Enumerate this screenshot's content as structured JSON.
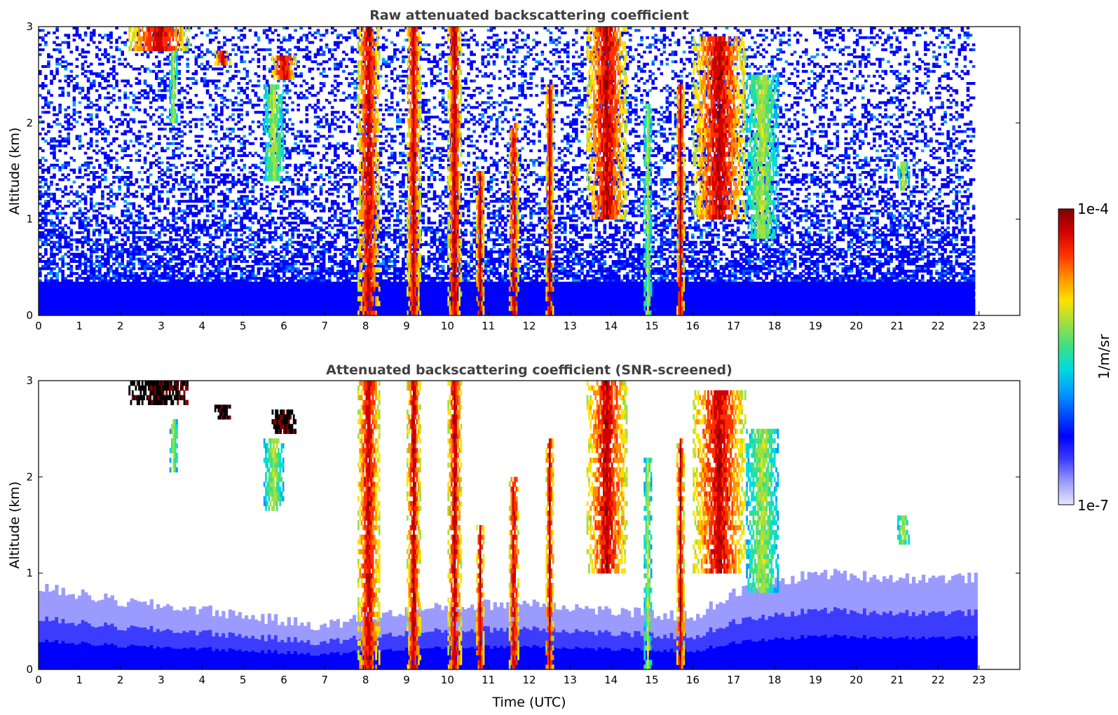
{
  "chart_data": [
    {
      "type": "heatmap",
      "title": "Raw attenuated backscattering coefficient",
      "xlabel": "",
      "ylabel": "Altitude (km)",
      "xlim": [
        0,
        24
      ],
      "ylim": [
        0,
        3
      ],
      "x_ticks": [
        "0",
        "1",
        "2",
        "3",
        "4",
        "5",
        "6",
        "7",
        "8",
        "9",
        "10",
        "11",
        "12",
        "13",
        "14",
        "15",
        "16",
        "17",
        "18",
        "19",
        "20",
        "21",
        "22",
        "23"
      ],
      "y_ticks": [
        "0",
        "1",
        "2",
        "3"
      ],
      "data_time_range": [
        0,
        22.9
      ],
      "background": "noise-speckled blue field, dense below 0.5 km",
      "features": [
        {
          "name": "elevated layer",
          "t": [
            2.2,
            3.7
          ],
          "z": [
            2.75,
            3.0
          ],
          "level": "high"
        },
        {
          "name": "elevated layer",
          "t": [
            4.3,
            4.7
          ],
          "z": [
            2.6,
            2.75
          ],
          "level": "high"
        },
        {
          "name": "elevated layer",
          "t": [
            5.7,
            6.3
          ],
          "z": [
            2.45,
            2.7
          ],
          "level": "high"
        },
        {
          "name": "fall streak",
          "t": [
            3.2,
            3.4
          ],
          "z": [
            2.0,
            2.75
          ],
          "level": "mid"
        },
        {
          "name": "fall streak",
          "t": [
            5.5,
            6.0
          ],
          "z": [
            1.4,
            2.4
          ],
          "level": "mid"
        },
        {
          "name": "cloud",
          "t": [
            7.8,
            8.35
          ],
          "z": [
            0.0,
            3.0
          ],
          "level": "high"
        },
        {
          "name": "cloud",
          "t": [
            9.0,
            9.35
          ],
          "z": [
            0.0,
            3.0
          ],
          "level": "high"
        },
        {
          "name": "cloud",
          "t": [
            10.0,
            10.35
          ],
          "z": [
            0.0,
            3.0
          ],
          "level": "high"
        },
        {
          "name": "cloud",
          "t": [
            10.7,
            10.9
          ],
          "z": [
            0.0,
            1.5
          ],
          "level": "high"
        },
        {
          "name": "cloud",
          "t": [
            11.5,
            11.75
          ],
          "z": [
            0.0,
            2.0
          ],
          "level": "high"
        },
        {
          "name": "cloud",
          "t": [
            12.4,
            12.6
          ],
          "z": [
            0.0,
            2.4
          ],
          "level": "high"
        },
        {
          "name": "cloud",
          "t": [
            13.4,
            14.4
          ],
          "z": [
            1.0,
            3.0
          ],
          "level": "high"
        },
        {
          "name": "cloud",
          "t": [
            14.8,
            15.0
          ],
          "z": [
            0.0,
            2.2
          ],
          "level": "mid"
        },
        {
          "name": "cloud",
          "t": [
            15.6,
            15.8
          ],
          "z": [
            0.0,
            2.4
          ],
          "level": "high"
        },
        {
          "name": "cloud",
          "t": [
            16.0,
            17.3
          ],
          "z": [
            1.0,
            2.9
          ],
          "level": "high"
        },
        {
          "name": "cloud",
          "t": [
            17.3,
            18.1
          ],
          "z": [
            0.8,
            2.5
          ],
          "level": "mid"
        },
        {
          "name": "small cloud",
          "t": [
            21.0,
            21.3
          ],
          "z": [
            1.3,
            1.6
          ],
          "level": "mid"
        }
      ]
    },
    {
      "type": "heatmap",
      "title": "Attenuated backscattering coefficient (SNR-screened)",
      "xlabel": "Time (UTC)",
      "ylabel": "Altitude (km)",
      "xlim": [
        0,
        24
      ],
      "ylim": [
        0,
        3
      ],
      "x_ticks": [
        "0",
        "1",
        "2",
        "3",
        "4",
        "5",
        "6",
        "7",
        "8",
        "9",
        "10",
        "11",
        "12",
        "13",
        "14",
        "15",
        "16",
        "17",
        "18",
        "19",
        "20",
        "21",
        "22",
        "23"
      ],
      "y_ticks": [
        "0",
        "1",
        "2",
        "3"
      ],
      "data_time_range": [
        0,
        22.9
      ],
      "background": "white above the screened boundary layer",
      "boundary_layer_top_km": [
        {
          "t": 0,
          "z": 0.85
        },
        {
          "t": 2,
          "z": 0.7
        },
        {
          "t": 4,
          "z": 0.62
        },
        {
          "t": 6,
          "z": 0.5
        },
        {
          "t": 7,
          "z": 0.45
        },
        {
          "t": 8,
          "z": 0.55
        },
        {
          "t": 10,
          "z": 0.65
        },
        {
          "t": 12,
          "z": 0.7
        },
        {
          "t": 14,
          "z": 0.6
        },
        {
          "t": 16,
          "z": 0.55
        },
        {
          "t": 17,
          "z": 0.8
        },
        {
          "t": 19,
          "z": 1.0
        },
        {
          "t": 21,
          "z": 0.95
        },
        {
          "t": 22.9,
          "z": 0.95
        }
      ],
      "features": [
        {
          "name": "elevated layer",
          "t": [
            2.2,
            3.7
          ],
          "z": [
            2.75,
            3.0
          ],
          "level": "saturated"
        },
        {
          "name": "elevated layer",
          "t": [
            4.3,
            4.7
          ],
          "z": [
            2.6,
            2.75
          ],
          "level": "saturated"
        },
        {
          "name": "elevated layer",
          "t": [
            5.7,
            6.3
          ],
          "z": [
            2.45,
            2.7
          ],
          "level": "saturated"
        },
        {
          "name": "fall streak",
          "t": [
            3.2,
            3.4
          ],
          "z": [
            2.05,
            2.6
          ],
          "level": "mid"
        },
        {
          "name": "fall streak",
          "t": [
            5.5,
            6.0
          ],
          "z": [
            1.65,
            2.4
          ],
          "level": "mid"
        },
        {
          "name": "cloud",
          "t": [
            7.8,
            8.35
          ],
          "z": [
            0.0,
            3.0
          ],
          "level": "high"
        },
        {
          "name": "cloud",
          "t": [
            9.0,
            9.35
          ],
          "z": [
            0.0,
            3.0
          ],
          "level": "high"
        },
        {
          "name": "cloud",
          "t": [
            10.0,
            10.35
          ],
          "z": [
            0.0,
            3.0
          ],
          "level": "high"
        },
        {
          "name": "cloud",
          "t": [
            10.7,
            10.9
          ],
          "z": [
            0.0,
            1.5
          ],
          "level": "high"
        },
        {
          "name": "cloud",
          "t": [
            11.5,
            11.75
          ],
          "z": [
            0.0,
            2.0
          ],
          "level": "high"
        },
        {
          "name": "cloud",
          "t": [
            12.4,
            12.6
          ],
          "z": [
            0.0,
            2.4
          ],
          "level": "high"
        },
        {
          "name": "cloud",
          "t": [
            13.4,
            14.4
          ],
          "z": [
            1.0,
            3.0
          ],
          "level": "high"
        },
        {
          "name": "cloud",
          "t": [
            14.8,
            15.0
          ],
          "z": [
            0.0,
            2.2
          ],
          "level": "mid"
        },
        {
          "name": "cloud",
          "t": [
            15.6,
            15.8
          ],
          "z": [
            0.0,
            2.4
          ],
          "level": "high"
        },
        {
          "name": "cloud",
          "t": [
            16.0,
            17.3
          ],
          "z": [
            1.0,
            2.9
          ],
          "level": "high"
        },
        {
          "name": "cloud",
          "t": [
            17.3,
            18.1
          ],
          "z": [
            0.8,
            2.5
          ],
          "level": "mid"
        },
        {
          "name": "small cloud",
          "t": [
            21.0,
            21.3
          ],
          "z": [
            1.3,
            1.6
          ],
          "level": "mid"
        }
      ]
    }
  ],
  "colorbar": {
    "label": "1/m/sr",
    "max_label": "1e-4",
    "min_label": "1e-7",
    "range": [
      1e-07,
      0.0001
    ],
    "scale": "log",
    "colormap": "jet",
    "stops": [
      "#e8e8ff",
      "#9b9bff",
      "#3c3cff",
      "#0000ff",
      "#0050ff",
      "#00a0ff",
      "#00dcdc",
      "#40e080",
      "#a0e040",
      "#ffe000",
      "#ff9000",
      "#ff3000",
      "#d00000",
      "#800000"
    ]
  }
}
